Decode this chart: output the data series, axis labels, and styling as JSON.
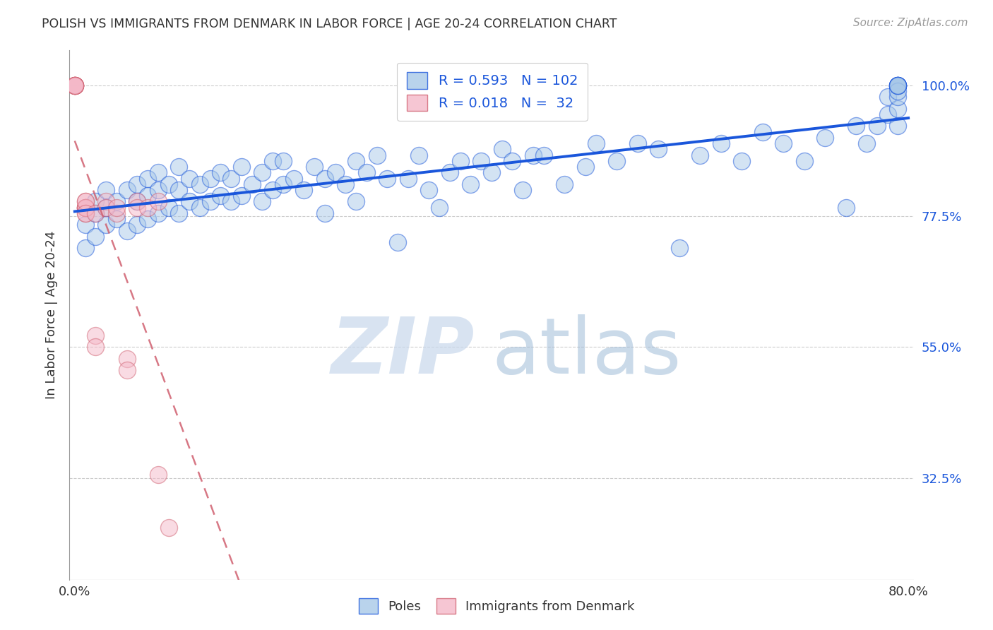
{
  "title": "POLISH VS IMMIGRANTS FROM DENMARK IN LABOR FORCE | AGE 20-24 CORRELATION CHART",
  "source": "Source: ZipAtlas.com",
  "ylabel": "In Labor Force | Age 20-24",
  "ytick_labels": [
    "100.0%",
    "77.5%",
    "55.0%",
    "32.5%"
  ],
  "ytick_values": [
    1.0,
    0.775,
    0.55,
    0.325
  ],
  "xlim": [
    -0.005,
    0.805
  ],
  "ylim": [
    0.15,
    1.06
  ],
  "legend_blue_r": "0.593",
  "legend_blue_n": "102",
  "legend_pink_r": "0.018",
  "legend_pink_n": " 32",
  "blue_color": "#a8c8e8",
  "pink_color": "#f4b8c8",
  "line_blue": "#1a56db",
  "line_pink": "#d06070",
  "blue_scatter_x": [
    0.01,
    0.01,
    0.02,
    0.02,
    0.02,
    0.03,
    0.03,
    0.03,
    0.04,
    0.04,
    0.05,
    0.05,
    0.06,
    0.06,
    0.06,
    0.07,
    0.07,
    0.07,
    0.08,
    0.08,
    0.08,
    0.09,
    0.09,
    0.1,
    0.1,
    0.1,
    0.11,
    0.11,
    0.12,
    0.12,
    0.13,
    0.13,
    0.14,
    0.14,
    0.15,
    0.15,
    0.16,
    0.16,
    0.17,
    0.18,
    0.18,
    0.19,
    0.19,
    0.2,
    0.2,
    0.21,
    0.22,
    0.23,
    0.24,
    0.24,
    0.25,
    0.26,
    0.27,
    0.27,
    0.28,
    0.29,
    0.3,
    0.31,
    0.32,
    0.33,
    0.34,
    0.35,
    0.36,
    0.37,
    0.38,
    0.39,
    0.4,
    0.41,
    0.42,
    0.43,
    0.44,
    0.45,
    0.47,
    0.49,
    0.5,
    0.52,
    0.54,
    0.56,
    0.58,
    0.6,
    0.62,
    0.64,
    0.66,
    0.68,
    0.7,
    0.72,
    0.74,
    0.75,
    0.76,
    0.77,
    0.78,
    0.78,
    0.79,
    0.79,
    0.79,
    0.79,
    0.79,
    0.79,
    0.79,
    0.79,
    0.79,
    0.79
  ],
  "blue_scatter_y": [
    0.72,
    0.76,
    0.74,
    0.78,
    0.8,
    0.76,
    0.79,
    0.82,
    0.77,
    0.8,
    0.75,
    0.82,
    0.76,
    0.8,
    0.83,
    0.77,
    0.81,
    0.84,
    0.78,
    0.82,
    0.85,
    0.79,
    0.83,
    0.78,
    0.82,
    0.86,
    0.8,
    0.84,
    0.79,
    0.83,
    0.8,
    0.84,
    0.81,
    0.85,
    0.8,
    0.84,
    0.81,
    0.86,
    0.83,
    0.8,
    0.85,
    0.82,
    0.87,
    0.83,
    0.87,
    0.84,
    0.82,
    0.86,
    0.78,
    0.84,
    0.85,
    0.83,
    0.87,
    0.8,
    0.85,
    0.88,
    0.84,
    0.73,
    0.84,
    0.88,
    0.82,
    0.79,
    0.85,
    0.87,
    0.83,
    0.87,
    0.85,
    0.89,
    0.87,
    0.82,
    0.88,
    0.88,
    0.83,
    0.86,
    0.9,
    0.87,
    0.9,
    0.89,
    0.72,
    0.88,
    0.9,
    0.87,
    0.92,
    0.9,
    0.87,
    0.91,
    0.79,
    0.93,
    0.9,
    0.93,
    0.95,
    0.98,
    0.93,
    0.96,
    0.98,
    1.0,
    1.0,
    1.0,
    1.0,
    0.99,
    1.0,
    1.0
  ],
  "pink_scatter_x": [
    0.0,
    0.0,
    0.0,
    0.0,
    0.0,
    0.0,
    0.0,
    0.0,
    0.01,
    0.01,
    0.01,
    0.01,
    0.01,
    0.01,
    0.01,
    0.01,
    0.01,
    0.02,
    0.02,
    0.02,
    0.03,
    0.03,
    0.04,
    0.04,
    0.05,
    0.05,
    0.06,
    0.06,
    0.07,
    0.08,
    0.08,
    0.09
  ],
  "pink_scatter_y": [
    1.0,
    1.0,
    1.0,
    1.0,
    1.0,
    1.0,
    1.0,
    1.0,
    0.79,
    0.79,
    0.79,
    0.78,
    0.8,
    0.79,
    0.79,
    0.8,
    0.78,
    0.57,
    0.55,
    0.78,
    0.8,
    0.79,
    0.78,
    0.79,
    0.53,
    0.51,
    0.8,
    0.79,
    0.79,
    0.33,
    0.8,
    0.24
  ]
}
